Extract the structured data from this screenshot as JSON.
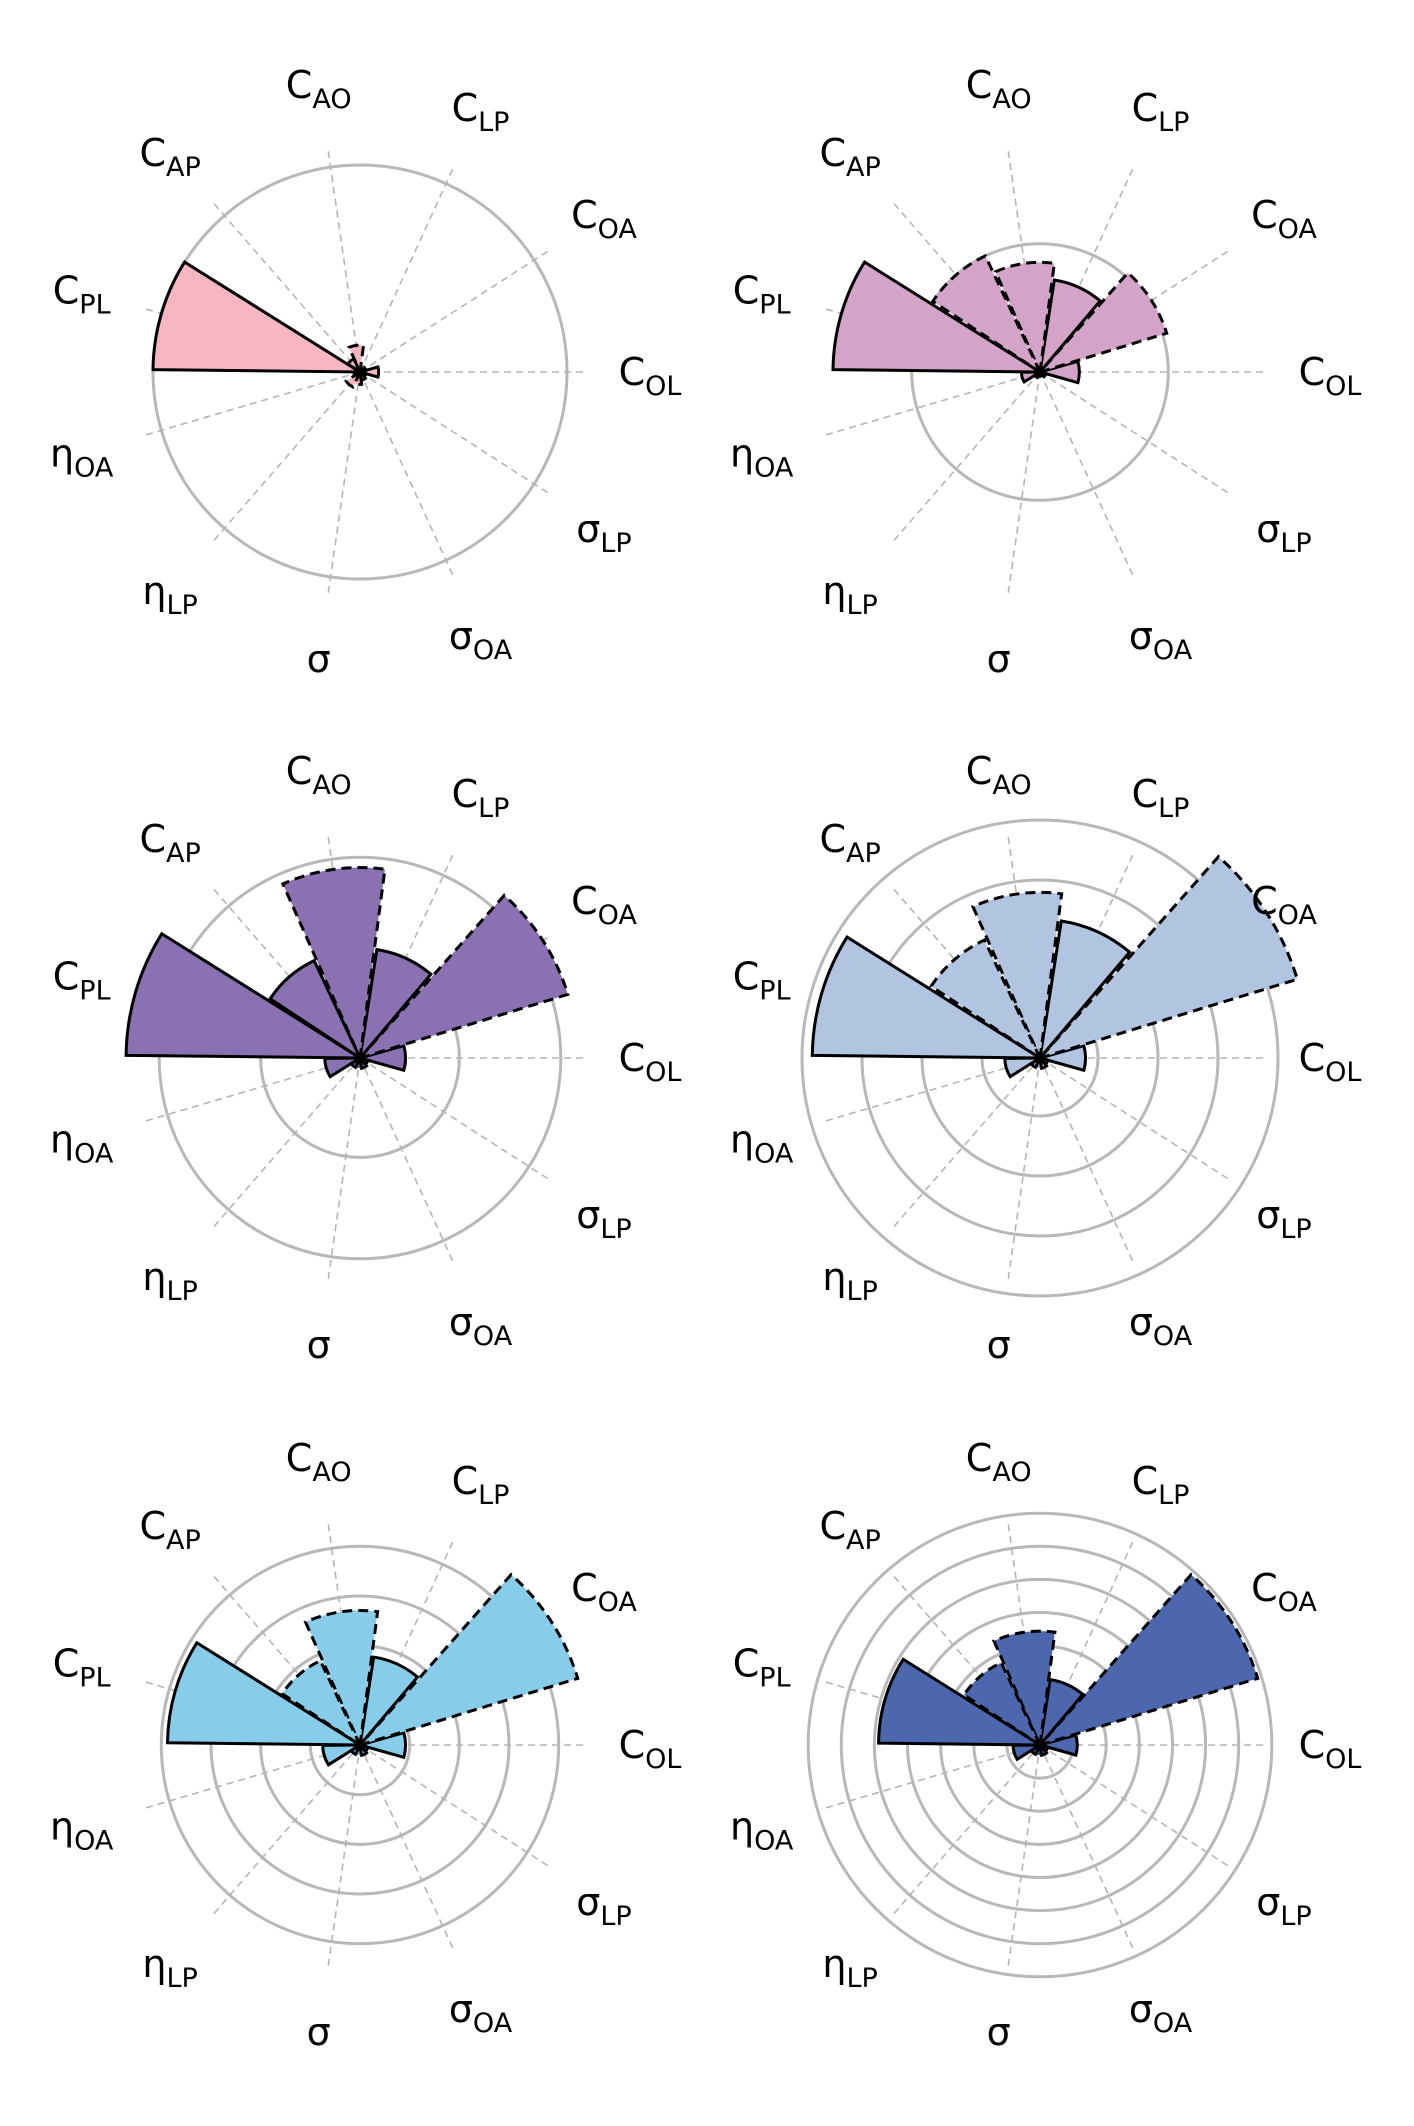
{
  "chart_data": {
    "type": "polar-bar",
    "axes": [
      {
        "symbol": "C",
        "subscript": "OL"
      },
      {
        "symbol": "C",
        "subscript": "OA"
      },
      {
        "symbol": "C",
        "subscript": "LP"
      },
      {
        "symbol": "C",
        "subscript": "AO"
      },
      {
        "symbol": "C",
        "subscript": "AP"
      },
      {
        "symbol": "C",
        "subscript": "PL"
      },
      {
        "symbol": "η",
        "subscript": "OA"
      },
      {
        "symbol": "η",
        "subscript": "LP"
      },
      {
        "symbol": "σ",
        "subscript": ""
      },
      {
        "symbol": "σ",
        "subscript": "OA"
      },
      {
        "symbol": "σ",
        "subscript": "LP"
      }
    ],
    "grid_radii_fraction": [
      0.5
    ],
    "panels": [
      {
        "color": "#f7b6c2",
        "grid_rings": [
          1.0
        ],
        "values": [
          0.09,
          0.03,
          0.02,
          0.13,
          0.07,
          1.0,
          0.03,
          0.08,
          0.06,
          0.04,
          0.03
        ],
        "dashed": [
          false,
          true,
          true,
          true,
          false,
          false,
          false,
          true,
          true,
          false,
          false
        ]
      },
      {
        "color": "#d4a3c8",
        "grid_rings": [
          0.62
        ],
        "values": [
          0.19,
          0.64,
          0.45,
          0.53,
          0.62,
          1.0,
          0.09,
          0.03,
          0.02,
          0.02,
          0.03
        ],
        "dashed": [
          false,
          true,
          false,
          true,
          true,
          false,
          false,
          false,
          true,
          false,
          false
        ]
      },
      {
        "color": "#8a72b2",
        "grid_rings": [
          0.48,
          0.97
        ],
        "values": [
          0.22,
          1.05,
          0.53,
          0.92,
          0.52,
          1.13,
          0.17,
          0.05,
          0.05,
          0.05,
          0.04
        ],
        "dashed": [
          false,
          true,
          false,
          true,
          false,
          false,
          false,
          false,
          true,
          false,
          false
        ]
      },
      {
        "color": "#b1c4e0",
        "grid_rings": [
          0.28,
          0.57,
          0.86,
          1.15
        ],
        "values": [
          0.22,
          1.3,
          0.67,
          0.8,
          0.63,
          1.1,
          0.17,
          0.05,
          0.05,
          0.05,
          0.04
        ],
        "dashed": [
          false,
          true,
          false,
          true,
          true,
          false,
          false,
          false,
          true,
          false,
          false
        ]
      },
      {
        "color": "#87cdea",
        "grid_rings": [
          0.24,
          0.48,
          0.72,
          0.96
        ],
        "values": [
          0.22,
          1.1,
          0.43,
          0.65,
          0.45,
          0.93,
          0.18,
          0.05,
          0.05,
          0.05,
          0.04
        ],
        "dashed": [
          false,
          true,
          false,
          true,
          true,
          false,
          false,
          false,
          true,
          false,
          false
        ]
      },
      {
        "color": "#4c67ae",
        "grid_rings": [
          0.16,
          0.32,
          0.48,
          0.64,
          0.8,
          0.96,
          1.12
        ],
        "values": [
          0.18,
          1.1,
          0.32,
          0.55,
          0.44,
          0.78,
          0.13,
          0.05,
          0.05,
          0.05,
          0.04
        ],
        "dashed": [
          false,
          true,
          false,
          true,
          true,
          false,
          false,
          false,
          true,
          false,
          false
        ]
      }
    ]
  }
}
